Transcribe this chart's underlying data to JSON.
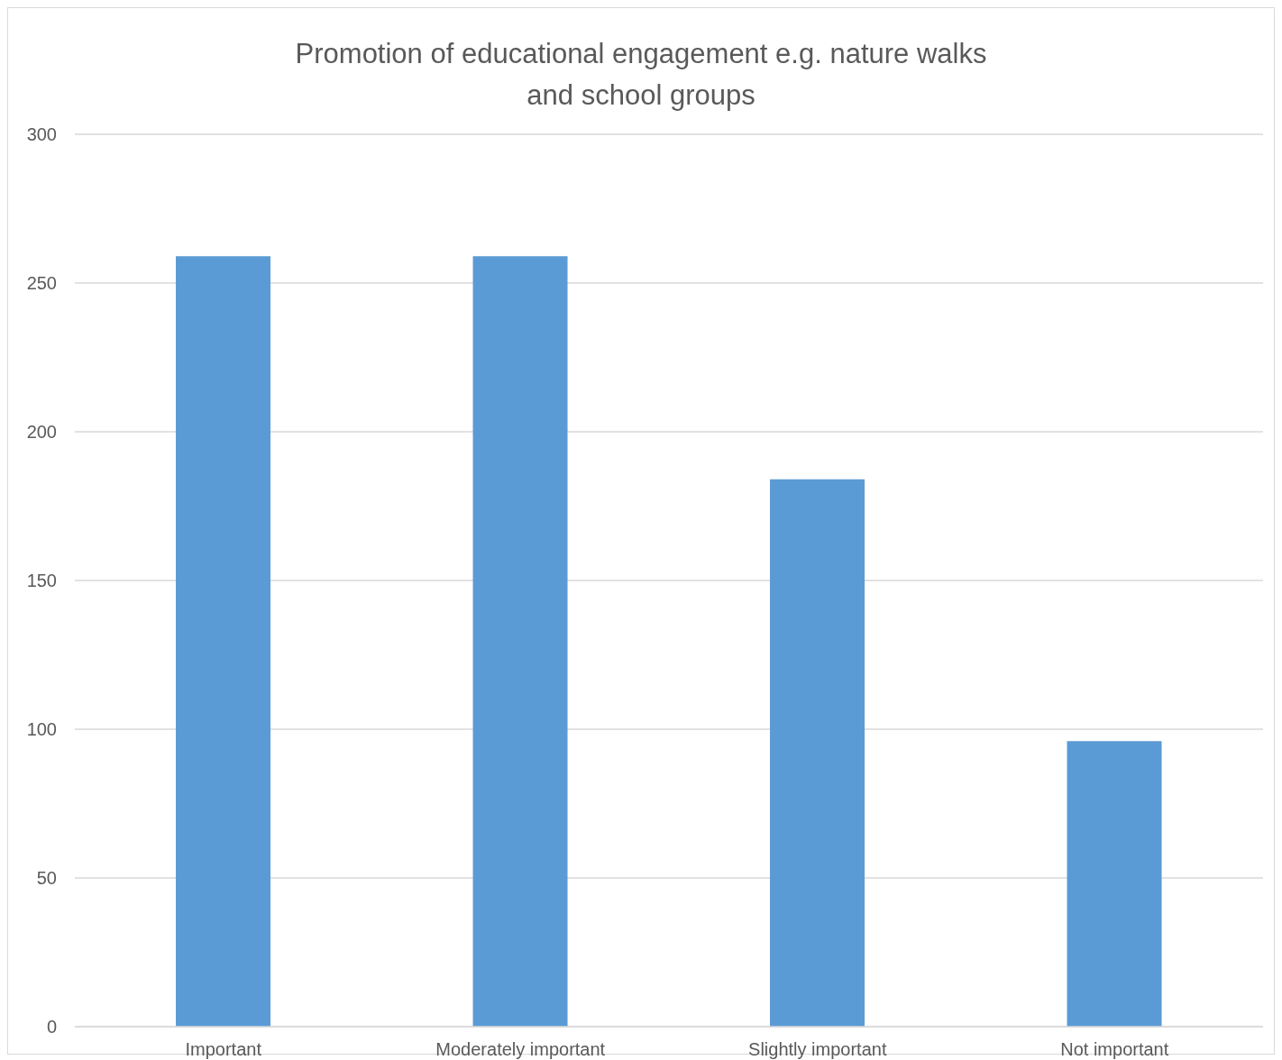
{
  "chart_data": {
    "type": "bar",
    "title": "Promotion of educational engagement e.g. nature walks and school groups",
    "categories": [
      "Important",
      "Moderately important",
      "Slightly important",
      "Not important"
    ],
    "values": [
      259,
      259,
      184,
      96
    ],
    "color": "#5b9bd5",
    "ylim": [
      0,
      300
    ],
    "yticks": [
      0,
      50,
      100,
      150,
      200,
      250,
      300
    ],
    "grid": "y"
  }
}
